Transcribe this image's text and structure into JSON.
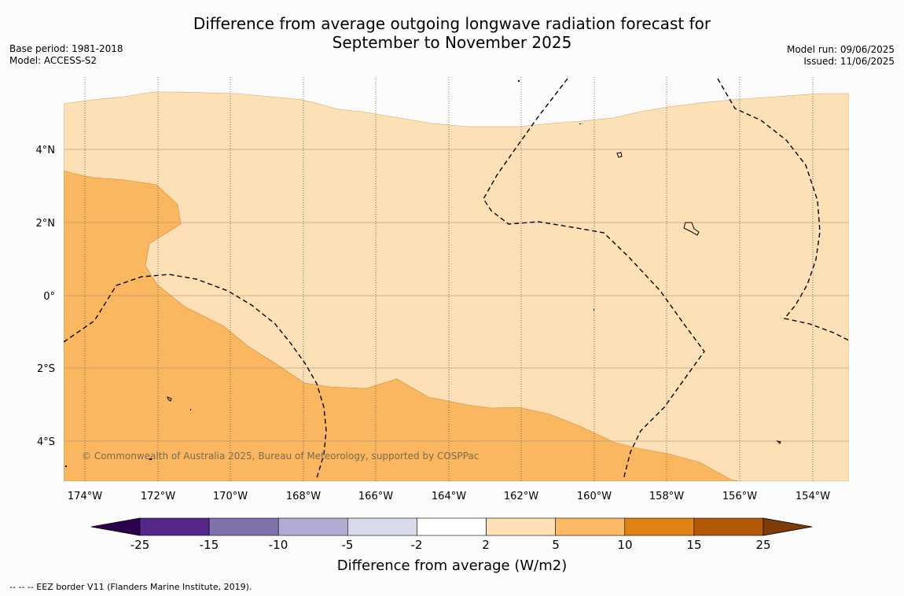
{
  "title": {
    "line1": "Difference from average outgoing longwave radiation forecast for",
    "line2": "September to November 2025"
  },
  "meta_left": {
    "base_period": "Base period: 1981-2018",
    "model": "Model: ACCESS-S2"
  },
  "meta_right": {
    "model_run": "Model run: 09/06/2025",
    "issued": "Issued: 11/06/2025"
  },
  "map": {
    "lon_range": [
      -174.6,
      -153.0
    ],
    "lat_range": [
      -5.1,
      5.6
    ],
    "grid_lons": [
      -174,
      -172,
      -170,
      -168,
      -166,
      -164,
      -162,
      -160,
      -158,
      -156,
      -154
    ],
    "grid_lats": [
      4,
      2,
      0,
      -2,
      -4
    ],
    "lon_labels": [
      "174°W",
      "172°W",
      "170°W",
      "168°W",
      "166°W",
      "164°W",
      "162°W",
      "160°W",
      "158°W",
      "156°W",
      "154°W"
    ],
    "lat_labels": [
      "4°N",
      "2°N",
      "0°",
      "2°S",
      "4°S"
    ],
    "copyright": "© Commonwealth of Australia 2025, Bureau of Meteorology, supported by COSPPac",
    "fill_colors": {
      "2_to_5": "#fde0b6",
      "5_to_10": "#fbb760",
      "background": "#fcfcfc"
    }
  },
  "colorbar": {
    "label": "Difference from average (W/m2)",
    "bounds": [
      -25,
      -15,
      -10,
      -5,
      -2,
      2,
      5,
      10,
      15,
      25
    ],
    "tick_labels": [
      "-25",
      "-15",
      "-10",
      "-5",
      "-2",
      "2",
      "5",
      "10",
      "15",
      "25"
    ],
    "colors": [
      "#542788",
      "#8073ac",
      "#b2abd2",
      "#d8daeb",
      "#ffffff",
      "#fee0b6",
      "#fdb863",
      "#e08214",
      "#b35806"
    ],
    "extend_low_color": "#2d004b",
    "extend_high_color": "#7f3b08"
  },
  "footnote": "--  --  -- EEZ border V11 (Flanders Marine Institute, 2019)."
}
